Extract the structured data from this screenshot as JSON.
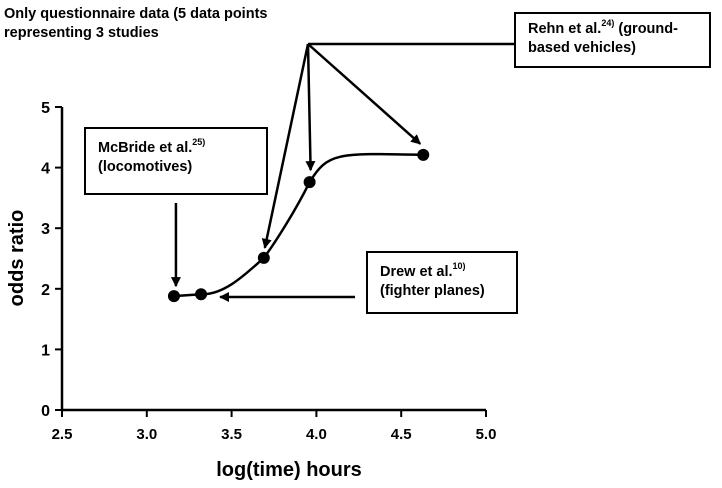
{
  "chart_data": {
    "type": "scatter",
    "title": "Only questionnaire data (5 data points representing 3 studies",
    "title_lines": [
      "Only questionnaire data (5 data points",
      "representing 3 studies"
    ],
    "xlabel": "log(time) hours",
    "ylabel": "odds ratio",
    "xlim": [
      2.5,
      5.0
    ],
    "ylim": [
      0,
      5
    ],
    "xticks": [
      "2.5",
      "3.0",
      "3.5",
      "4.0",
      "4.5",
      "5.0"
    ],
    "yticks": [
      "0",
      "1",
      "2",
      "3",
      "4",
      "5"
    ],
    "grid": false,
    "legend": "none",
    "series": [
      {
        "points": [
          {
            "x": 3.16,
            "y": 1.88
          },
          {
            "x": 3.32,
            "y": 1.91
          },
          {
            "x": 3.69,
            "y": 2.51
          },
          {
            "x": 3.96,
            "y": 3.76
          },
          {
            "x": 4.63,
            "y": 4.21
          }
        ],
        "fitted_curve": "sigmoid"
      }
    ],
    "annotations": [
      {
        "id": "rehn",
        "author": "Rehn et al.",
        "ref": "24)",
        "text_after": " (ground-",
        "line2": "based vehicles)",
        "points_to": [
          2,
          3,
          4
        ]
      },
      {
        "id": "mcbride",
        "author": "McBride et al.",
        "ref": "25)",
        "text_after": "",
        "line2": "(locomotives)",
        "points_to": [
          0
        ]
      },
      {
        "id": "drew",
        "author": "Drew et al.",
        "ref": "10)",
        "text_after": "",
        "line2": "(fighter planes)",
        "points_to": [
          1
        ]
      }
    ]
  },
  "colors": {
    "ink": "#000000",
    "background": "#ffffff"
  }
}
